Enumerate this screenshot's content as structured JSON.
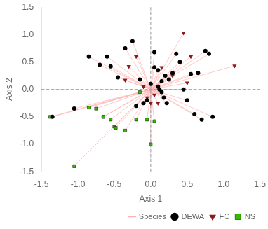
{
  "chart_data": {
    "type": "scatter",
    "xlabel": "Axis 1",
    "ylabel": "Axis 2",
    "series": [
      {
        "name": "Species",
        "type": "spider",
        "color": "#FFB0B0",
        "origin": [
          0.0,
          0.0
        ]
      },
      {
        "name": "DEWA",
        "color": "#000000",
        "marker": "circle",
        "x": [
          -1.35,
          -1.05,
          -0.85,
          -0.7,
          -0.6,
          -0.55,
          -0.45,
          -0.35,
          -0.25,
          -0.2,
          -0.15,
          -0.1,
          -0.05,
          0.0,
          0.05,
          0.05,
          0.1,
          0.1,
          0.12,
          0.15,
          0.15,
          0.18,
          0.2,
          0.22,
          0.25,
          0.3,
          0.35,
          0.4,
          0.45,
          0.5,
          0.55,
          0.6,
          0.65,
          0.7,
          0.75,
          0.8,
          0.85
        ],
        "values": [
          -0.5,
          -0.35,
          0.6,
          0.45,
          0.6,
          0.42,
          0.22,
          0.75,
          0.88,
          -0.3,
          0.18,
          -0.25,
          -0.2,
          0.1,
          0.4,
          0.68,
          0.35,
          0.05,
          0.0,
          0.15,
          -0.05,
          -0.15,
          0.25,
          -0.25,
          0.18,
          0.3,
          0.65,
          0.5,
          0.0,
          -0.2,
          0.28,
          -0.45,
          0.3,
          -0.55,
          0.7,
          0.65,
          -0.5
        ]
      },
      {
        "name": "FC",
        "color": "#8B1A1A",
        "marker": "triangle_down",
        "x": [
          -0.35,
          -0.3,
          -0.2,
          -0.1,
          -0.05,
          0.0,
          0.05,
          0.1,
          0.15,
          0.3,
          0.45,
          0.5,
          0.55,
          1.15
        ],
        "values": [
          0.17,
          0.42,
          0.6,
          0.05,
          -0.15,
          -0.25,
          -0.1,
          -0.25,
          0.4,
          0.25,
          1.03,
          0.12,
          0.6,
          0.43
        ]
      },
      {
        "name": "NS",
        "color": "#33BB00",
        "marker": "square",
        "x": [
          -1.38,
          -1.05,
          -0.85,
          -0.75,
          -0.65,
          -0.65,
          -0.55,
          -0.5,
          -0.48,
          -0.35,
          -0.2,
          -0.15,
          -0.05,
          0.0,
          0.05
        ],
        "values": [
          -0.5,
          -1.4,
          -0.33,
          -0.35,
          -0.5,
          -0.5,
          -0.55,
          -0.68,
          -0.7,
          -0.75,
          -0.55,
          -0.05,
          -0.55,
          -1.0,
          -0.58
        ]
      }
    ],
    "xlim": [
      -1.5,
      1.5
    ],
    "ylim": [
      -1.5,
      1.5
    ],
    "xticks": [
      -1.5,
      {
        "value": -1.0,
        "label": "-1.0"
      },
      -0.5,
      {
        "value": 0.0,
        "label": "0.0"
      },
      0.5,
      {
        "value": 1.0,
        "label": "1.0"
      },
      1.5
    ],
    "yticks": [
      -1.5,
      {
        "value": -1.0,
        "label": "-1.0"
      },
      -0.5,
      {
        "value": 0.0,
        "label": "0.0"
      },
      0.5,
      {
        "value": 1.0,
        "label": "1.0"
      },
      1.5
    ],
    "reference_lines": {
      "x": [
        0.0
      ],
      "y": [
        0.0
      ]
    },
    "grid": false,
    "legend": "lower right"
  }
}
